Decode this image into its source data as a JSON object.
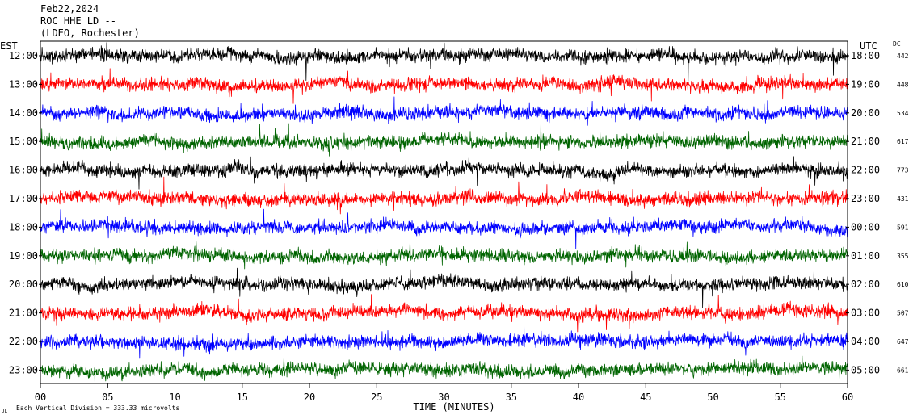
{
  "header": {
    "date": "Feb22,2024",
    "station": "ROC HHE LD --",
    "network": "(LDEO, Rochester)"
  },
  "chart_data": {
    "type": "line",
    "title": "",
    "xlabel": "TIME (MINUTES)",
    "left_axis_label": "EST",
    "right_axis_label": "UTC",
    "dc_label": "DC",
    "x_range": [
      0,
      60
    ],
    "x_ticks": [
      "00",
      "05",
      "10",
      "15",
      "20",
      "25",
      "30",
      "35",
      "40",
      "45",
      "50",
      "55",
      "60"
    ],
    "rows": [
      {
        "est": "12:00",
        "utc": "18:00",
        "dc": "442",
        "color": "#000000"
      },
      {
        "est": "13:00",
        "utc": "19:00",
        "dc": "448",
        "color": "#ff0000"
      },
      {
        "est": "14:00",
        "utc": "20:00",
        "dc": "534",
        "color": "#0000ff"
      },
      {
        "est": "15:00",
        "utc": "21:00",
        "dc": "617",
        "color": "#006400"
      },
      {
        "est": "16:00",
        "utc": "22:00",
        "dc": "773",
        "color": "#000000"
      },
      {
        "est": "17:00",
        "utc": "23:00",
        "dc": "431",
        "color": "#ff0000"
      },
      {
        "est": "18:00",
        "utc": "00:00",
        "dc": "591",
        "color": "#0000ff"
      },
      {
        "est": "19:00",
        "utc": "01:00",
        "dc": "355",
        "color": "#006400"
      },
      {
        "est": "20:00",
        "utc": "02:00",
        "dc": "610",
        "color": "#000000"
      },
      {
        "est": "21:00",
        "utc": "03:00",
        "dc": "507",
        "color": "#ff0000"
      },
      {
        "est": "22:00",
        "utc": "04:00",
        "dc": "647",
        "color": "#0000ff"
      },
      {
        "est": "23:00",
        "utc": "05:00",
        "dc": "661",
        "color": "#006400"
      }
    ],
    "footer": "Each Vertical Division = 333.33 microvolts",
    "footer_mark": "JL"
  }
}
